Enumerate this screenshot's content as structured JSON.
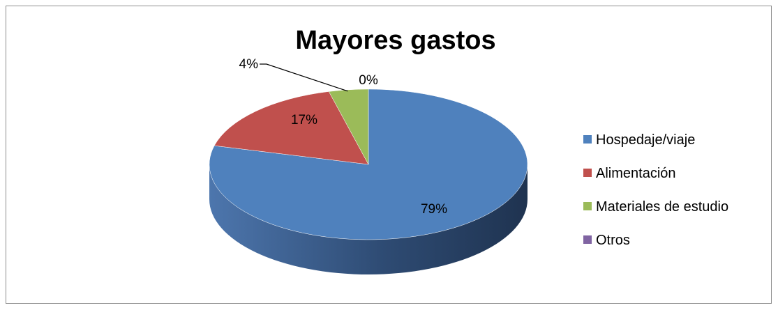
{
  "chart_data": {
    "type": "pie",
    "style": "3d-pie",
    "title": "Mayores gastos",
    "categories": [
      "Hospedaje/viaje",
      "Alimentación",
      "Materiales de estudio",
      "Otros"
    ],
    "values": [
      79,
      17,
      4,
      0
    ],
    "data_labels": [
      "79%",
      "17%",
      "4%",
      "0%"
    ],
    "colors": [
      "#4f81bd",
      "#c0504d",
      "#9bbb59",
      "#8064a2"
    ],
    "legend_position": "right",
    "border": true
  }
}
